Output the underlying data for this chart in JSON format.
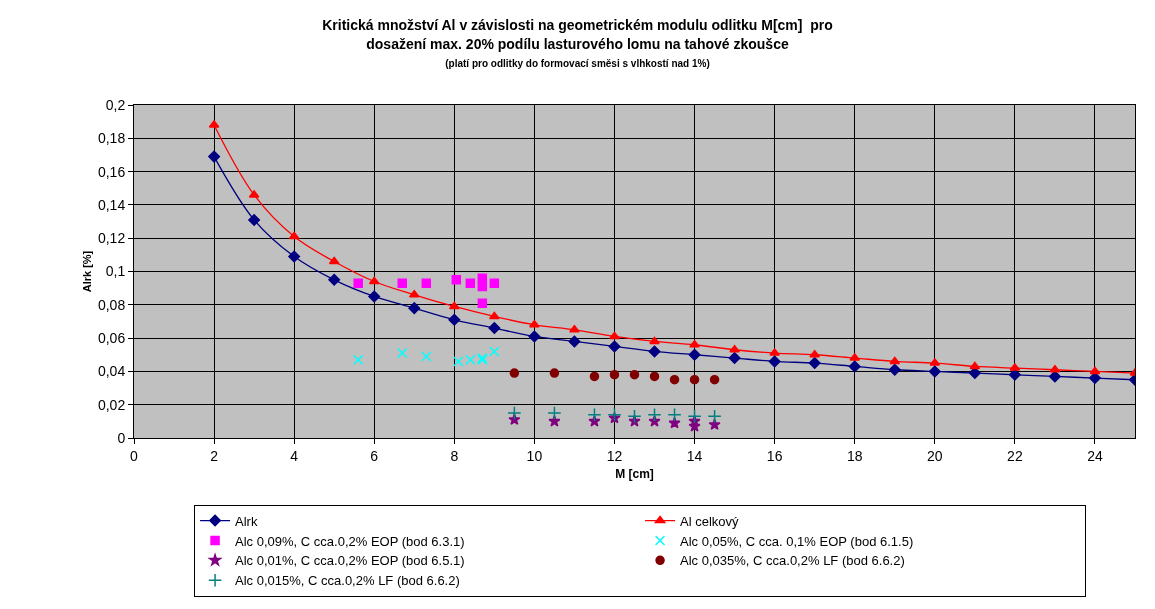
{
  "chart_data": {
    "type": "scatter",
    "title": "Kritická množství Al v závislosti na geometrickém modulu odlitku M[cm]  pro dosažení max. 20% podílu lasturového lomu na tahové zkoušce",
    "subtitle": "(platí pro odlitky do formovací směsi s vlhkostí nad 1%)",
    "xlabel": "M [cm]",
    "ylabel": "Alrk [%]",
    "xlim": [
      0,
      25
    ],
    "xticks": [
      0,
      2,
      4,
      6,
      8,
      10,
      12,
      14,
      16,
      18,
      20,
      22,
      24
    ],
    "ylim": [
      0,
      0.2
    ],
    "yticks": [
      0,
      {
        "value": 0.02,
        "label": "0,02"
      },
      {
        "value": 0.04,
        "label": "0,04"
      },
      {
        "value": 0.06,
        "label": "0,06"
      },
      {
        "value": 0.08,
        "label": "0,08"
      },
      {
        "value": 0.1,
        "label": "0,1"
      },
      {
        "value": 0.12,
        "label": "0,12"
      },
      {
        "value": 0.14,
        "label": "0,14"
      },
      {
        "value": 0.16,
        "label": "0,16"
      },
      {
        "value": 0.18,
        "label": "0,18"
      },
      {
        "value": 0.2,
        "label": "0,2"
      }
    ],
    "grid": true,
    "legend": "bottom",
    "series": [
      {
        "name": "Alrk",
        "type": "line",
        "marker": "diamond",
        "color": "#000080",
        "x": [
          2,
          3,
          4,
          5,
          6,
          7,
          8,
          9,
          10,
          11,
          12,
          13,
          14,
          15,
          16,
          17,
          18,
          19,
          20,
          21,
          22,
          23,
          24,
          25
        ],
        "values": [
          0.169,
          0.131,
          0.109,
          0.095,
          0.085,
          0.078,
          0.071,
          0.066,
          0.061,
          0.058,
          0.055,
          0.052,
          0.05,
          0.048,
          0.046,
          0.045,
          0.043,
          0.041,
          0.04,
          0.039,
          0.038,
          0.037,
          0.036,
          0.035
        ]
      },
      {
        "name": "Al celkový",
        "type": "line",
        "marker": "triangle",
        "color": "#ff0000",
        "x": [
          2,
          3,
          4,
          5,
          6,
          7,
          8,
          9,
          10,
          11,
          12,
          13,
          14,
          15,
          16,
          17,
          18,
          19,
          20,
          21,
          22,
          23,
          24,
          25
        ],
        "values": [
          0.188,
          0.146,
          0.121,
          0.106,
          0.094,
          0.086,
          0.079,
          0.073,
          0.068,
          0.065,
          0.061,
          0.058,
          0.056,
          0.053,
          0.051,
          0.05,
          0.048,
          0.046,
          0.045,
          0.043,
          0.042,
          0.041,
          0.04,
          0.039
        ]
      },
      {
        "name": "Alc 0,09%, C cca.0,2% EOP (bod 6.3.1)",
        "marker": "square",
        "color": "#ff00ff",
        "x": [
          5.6,
          6.7,
          7.3,
          8.05,
          8.4,
          8.7,
          8.7,
          9.0,
          8.7
        ],
        "values": [
          0.093,
          0.093,
          0.093,
          0.095,
          0.093,
          0.096,
          0.091,
          0.093,
          0.081
        ]
      },
      {
        "name": "Alc 0,05%, C cca. 0,1% EOP (bod 6.1.5)",
        "marker": "cross",
        "color": "#00ffff",
        "x": [
          5.6,
          6.7,
          7.3,
          8.1,
          8.4,
          8.7,
          8.7,
          9.0
        ],
        "values": [
          0.047,
          0.051,
          0.049,
          0.046,
          0.047,
          0.048,
          0.047,
          0.052
        ]
      },
      {
        "name": "Alc 0,01%, C cca.0,2% EOP (bod 6.5.1)",
        "marker": "star",
        "color": "#800080",
        "x": [
          9.5,
          10.5,
          11.5,
          12,
          12.5,
          13,
          13.5,
          14,
          14,
          14.5
        ],
        "values": [
          0.011,
          0.01,
          0.01,
          0.012,
          0.01,
          0.01,
          0.009,
          0.01,
          0.007,
          0.008
        ]
      },
      {
        "name": "Alc 0,035%, C cca.0,2% LF (bod 6.6.2)",
        "marker": "circle",
        "color": "#800000",
        "x": [
          9.5,
          10.5,
          11.5,
          12,
          12.5,
          13,
          13.5,
          14,
          14.5
        ],
        "values": [
          0.039,
          0.039,
          0.037,
          0.038,
          0.038,
          0.037,
          0.035,
          0.035,
          0.035
        ]
      },
      {
        "name": "Alc 0,015%, C cca.0,2% LF (bod 6.6.2)",
        "marker": "plus",
        "color": "#008080",
        "x": [
          9.5,
          10.5,
          11.5,
          12,
          12.5,
          13,
          13.5,
          14,
          14.5
        ],
        "values": [
          0.015,
          0.015,
          0.014,
          0.014,
          0.013,
          0.014,
          0.014,
          0.013,
          0.013
        ]
      }
    ]
  }
}
